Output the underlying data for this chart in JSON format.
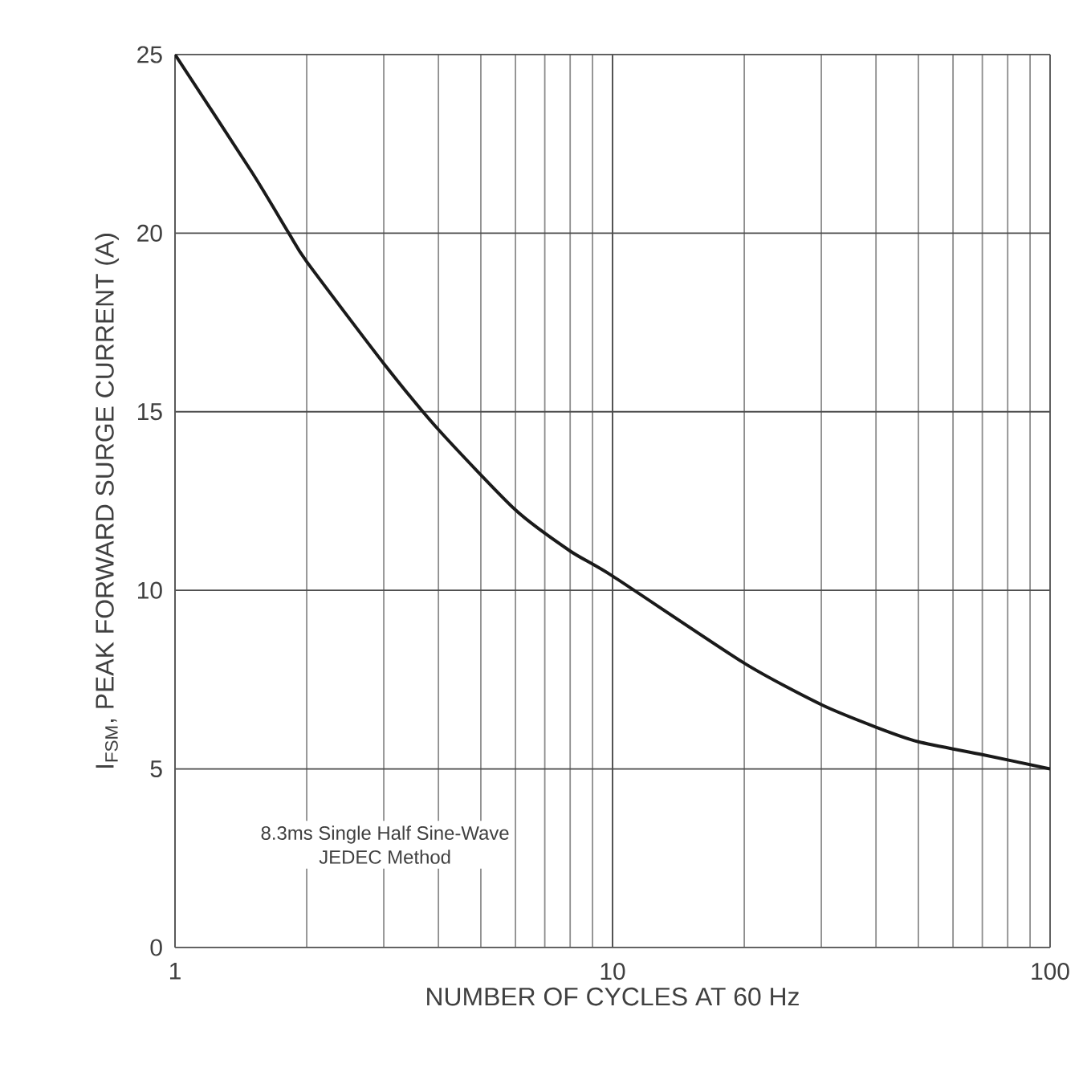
{
  "chart_data": {
    "type": "line",
    "xlabel": "NUMBER OF CYCLES AT 60 Hz",
    "ylabel": "I$_{FSM}$, PEAK FORWARD SURGE CURRENT (A)",
    "annotations": [
      "8.3ms Single Half Sine-Wave",
      "JEDEC Method"
    ],
    "log": "x",
    "grid": true,
    "marker": "none",
    "line_style": "solid",
    "xlim": [
      1,
      100
    ],
    "xticks": [
      1,
      10,
      100
    ],
    "ylim": [
      0,
      25
    ],
    "yticks": [
      0,
      5,
      10,
      15,
      20,
      25
    ],
    "series": [
      {
        "color": "#1a1a1a",
        "x": [
          1,
          1.5,
          1.82,
          2,
          3,
          4,
          6,
          8,
          10,
          20,
          30,
          40,
          50,
          70,
          100
        ],
        "values": [
          25,
          21.7,
          20,
          19.2,
          16.35,
          14.5,
          12.25,
          11.1,
          10.4,
          7.96,
          6.8,
          6.17,
          5.76,
          5.4,
          5
        ]
      }
    ]
  }
}
